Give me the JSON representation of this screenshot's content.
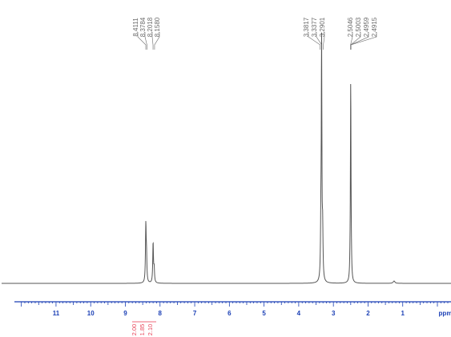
{
  "chart_data": {
    "type": "line",
    "title": "",
    "xlabel": "ppm",
    "ylabel": "",
    "x_reversed": true,
    "xlim": [
      12.2,
      -0.3
    ],
    "ylim": [
      0,
      1
    ],
    "ticks": [
      "11",
      "10",
      "9",
      "8",
      "7",
      "6",
      "5",
      "4",
      "3",
      "2",
      "1"
    ],
    "peak_labels": [
      {
        "text": "8.4111",
        "x": 8.411
      },
      {
        "text": "8.3784",
        "x": 8.378
      },
      {
        "text": "8.2018",
        "x": 8.202
      },
      {
        "text": "8.1580",
        "x": 8.158
      },
      {
        "text": "3.3817",
        "x": 3.382
      },
      {
        "text": "3.3377",
        "x": 3.338
      },
      {
        "text": "3.2901",
        "x": 3.29
      },
      {
        "text": "2.5046",
        "x": 2.505
      },
      {
        "text": "2.5003",
        "x": 2.5
      },
      {
        "text": "2.4959",
        "x": 2.496
      },
      {
        "text": "2.4915",
        "x": 2.492
      }
    ],
    "series": [
      {
        "peaks": [
          {
            "ppm": 8.41,
            "height": 0.24,
            "width": 0.012
          },
          {
            "ppm": 8.39,
            "height": 0.1,
            "width": 0.012
          },
          {
            "ppm": 8.2,
            "height": 0.17,
            "width": 0.012
          },
          {
            "ppm": 8.17,
            "height": 0.06,
            "width": 0.012
          },
          {
            "ppm": 3.36,
            "height": 0.22,
            "width": 0.012
          },
          {
            "ppm": 3.34,
            "height": 0.99,
            "width": 0.01
          },
          {
            "ppm": 3.31,
            "height": 0.2,
            "width": 0.012
          },
          {
            "ppm": 2.52,
            "height": 0.04,
            "width": 0.01
          },
          {
            "ppm": 2.5,
            "height": 0.85,
            "width": 0.01
          },
          {
            "ppm": 2.48,
            "height": 0.04,
            "width": 0.01
          },
          {
            "ppm": 1.25,
            "height": 0.01,
            "width": 0.03
          }
        ]
      }
    ],
    "integrals": [
      {
        "text": "2.00",
        "x": 8.42
      },
      {
        "text": "1.85",
        "x": 8.3
      },
      {
        "text": "2.10",
        "x": 8.18
      }
    ],
    "colors": {
      "spectrum": "#555555",
      "axis": "#1a3fb5",
      "peak_labels": "#6a6a6a",
      "integral": "#e8455a"
    }
  }
}
